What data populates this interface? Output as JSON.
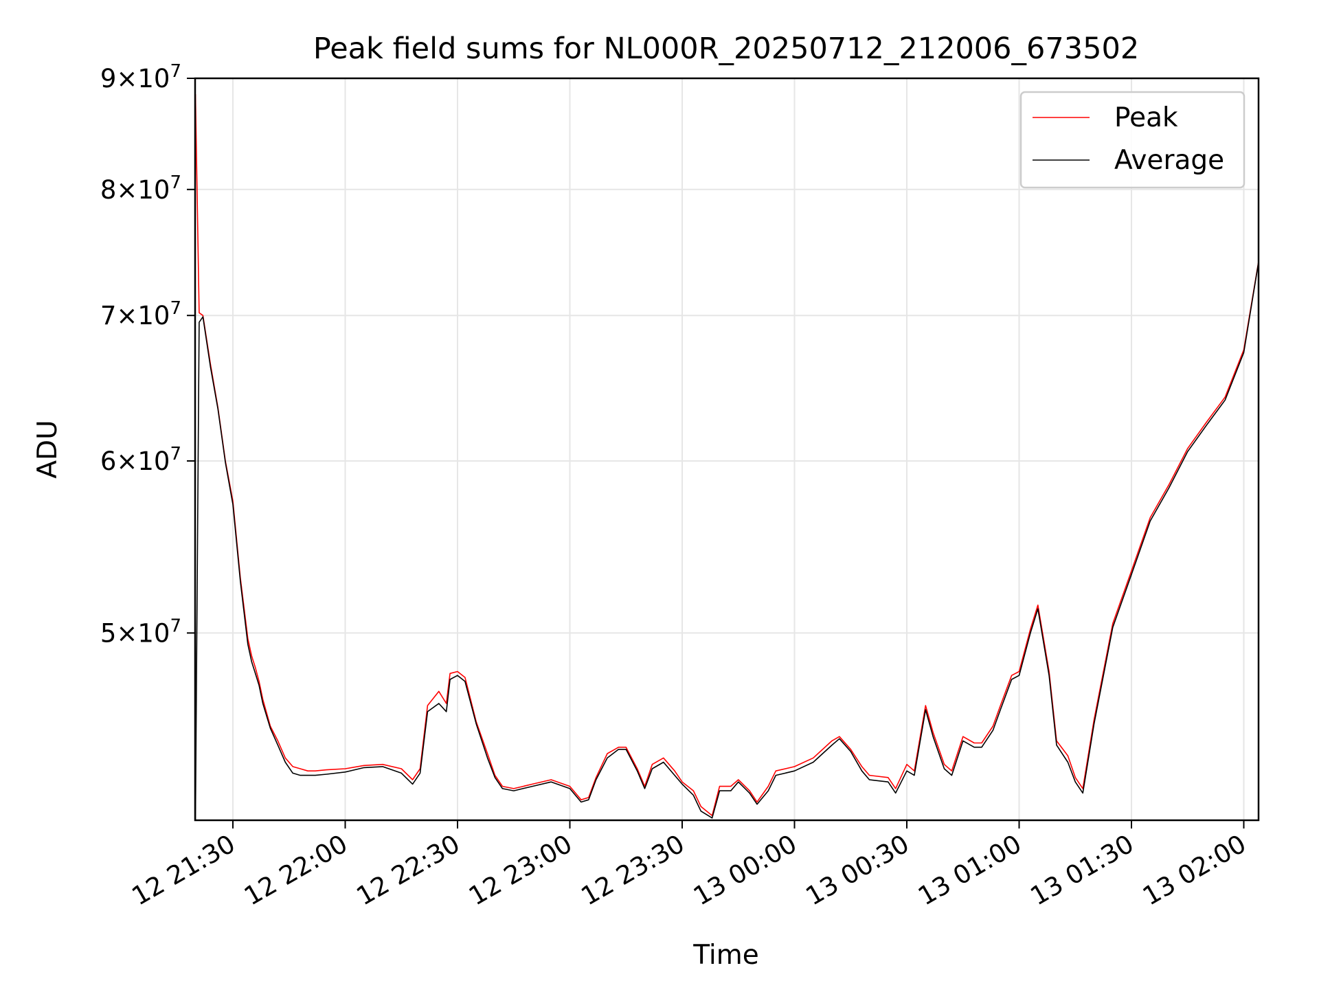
{
  "chart_data": {
    "type": "line",
    "title": "Peak field sums for NL000R_20250712_212006_673502",
    "xlabel": "Time",
    "ylabel": "ADU",
    "y_scale": "log",
    "ylim": [
      41000000,
      90000000
    ],
    "grid": true,
    "legend_position": "top-right",
    "x_ticks": [
      "12 21:30",
      "12 22:00",
      "12 22:30",
      "12 23:00",
      "12 23:30",
      "13 00:00",
      "13 00:30",
      "13 01:00",
      "13 01:30",
      "13 02:00"
    ],
    "y_ticks": [
      {
        "mantissa": "5",
        "exponent": "7",
        "value": 50000000
      },
      {
        "mantissa": "6",
        "exponent": "7",
        "value": 60000000
      },
      {
        "mantissa": "7",
        "exponent": "7",
        "value": 70000000
      },
      {
        "mantissa": "8",
        "exponent": "7",
        "value": 80000000
      },
      {
        "mantissa": "9",
        "exponent": "7",
        "value": 90000000
      }
    ],
    "x": [
      "21:20",
      "21:21",
      "21:22",
      "21:24",
      "21:26",
      "21:28",
      "21:30",
      "21:32",
      "21:34",
      "21:35",
      "21:36",
      "21:37",
      "21:38",
      "21:40",
      "21:42",
      "21:44",
      "21:46",
      "21:48",
      "21:50",
      "21:52",
      "21:55",
      "22:00",
      "22:05",
      "22:10",
      "22:15",
      "22:18",
      "22:20",
      "22:22",
      "22:25",
      "22:27",
      "22:28",
      "22:30",
      "22:32",
      "22:35",
      "22:38",
      "22:40",
      "22:42",
      "22:45",
      "22:50",
      "22:55",
      "23:00",
      "23:03",
      "23:05",
      "23:07",
      "23:10",
      "23:13",
      "23:15",
      "23:18",
      "23:20",
      "23:22",
      "23:25",
      "23:28",
      "23:30",
      "23:33",
      "23:35",
      "23:38",
      "23:40",
      "23:43",
      "23:45",
      "23:48",
      "23:50",
      "23:53",
      "23:55",
      "24:00",
      "24:05",
      "24:10",
      "24:12",
      "24:15",
      "24:18",
      "24:20",
      "24:25",
      "24:27",
      "24:30",
      "24:32",
      "24:35",
      "24:37",
      "24:40",
      "24:42",
      "24:45",
      "24:48",
      "24:50",
      "24:53",
      "24:55",
      "24:58",
      "25:00",
      "25:03",
      "25:05",
      "25:08",
      "25:10",
      "25:13",
      "25:15",
      "25:17",
      "25:20",
      "25:25",
      "25:30",
      "25:35",
      "25:40",
      "25:45",
      "25:50",
      "25:55",
      "26:00",
      "26:05"
    ],
    "series": [
      {
        "name": "Peak",
        "color": "#ff0000",
        "values": [
          88500000,
          70200000,
          70000000,
          66500000,
          63500000,
          60000000,
          57500000,
          53000000,
          49700000,
          48800000,
          48200000,
          47500000,
          46600000,
          45300000,
          44600000,
          43800000,
          43400000,
          43300000,
          43200000,
          43200000,
          43250000,
          43300000,
          43450000,
          43500000,
          43300000,
          42800000,
          43300000,
          46300000,
          47000000,
          46400000,
          47900000,
          48000000,
          47700000,
          45500000,
          44000000,
          43000000,
          42500000,
          42400000,
          42600000,
          42800000,
          42500000,
          41900000,
          42000000,
          42900000,
          44000000,
          44300000,
          44300000,
          43300000,
          42500000,
          43500000,
          43800000,
          43200000,
          42700000,
          42300000,
          41600000,
          41200000,
          42500000,
          42500000,
          42800000,
          42300000,
          41800000,
          42500000,
          43200000,
          43400000,
          43800000,
          44600000,
          44800000,
          44200000,
          43400000,
          43000000,
          42900000,
          42400000,
          43500000,
          43200000,
          46300000,
          45000000,
          43500000,
          43200000,
          44800000,
          44500000,
          44500000,
          45300000,
          46300000,
          47800000,
          48000000,
          50200000,
          51500000,
          48000000,
          44600000,
          43900000,
          42900000,
          42400000,
          45600000,
          50500000,
          53400000,
          56500000,
          58500000,
          60800000,
          62500000,
          64200000,
          67500000,
          76000000
        ]
      },
      {
        "name": "Average",
        "color": "#000000",
        "values": [
          41000000,
          69500000,
          69900000,
          66300000,
          63400000,
          59900000,
          57300000,
          52800000,
          49400000,
          48500000,
          47900000,
          47300000,
          46400000,
          45200000,
          44400000,
          43600000,
          43100000,
          43000000,
          43000000,
          43000000,
          43050000,
          43150000,
          43350000,
          43400000,
          43100000,
          42600000,
          43100000,
          46000000,
          46400000,
          46000000,
          47600000,
          47800000,
          47500000,
          45400000,
          43800000,
          42900000,
          42400000,
          42300000,
          42500000,
          42700000,
          42400000,
          41800000,
          41900000,
          42800000,
          43800000,
          44200000,
          44200000,
          43200000,
          42400000,
          43300000,
          43600000,
          43000000,
          42600000,
          42100000,
          41400000,
          41100000,
          42300000,
          42300000,
          42700000,
          42200000,
          41700000,
          42300000,
          43000000,
          43200000,
          43600000,
          44400000,
          44700000,
          44100000,
          43200000,
          42800000,
          42700000,
          42200000,
          43200000,
          43000000,
          46100000,
          44800000,
          43300000,
          43000000,
          44600000,
          44300000,
          44300000,
          45100000,
          46100000,
          47600000,
          47800000,
          50000000,
          51300000,
          47800000,
          44400000,
          43600000,
          42700000,
          42200000,
          45400000,
          50300000,
          53200000,
          56300000,
          58300000,
          60600000,
          62300000,
          64000000,
          67300000,
          76000000
        ]
      }
    ]
  }
}
